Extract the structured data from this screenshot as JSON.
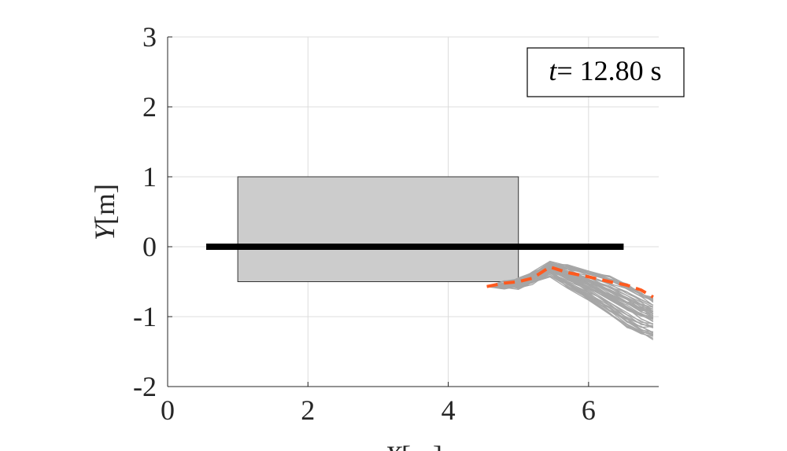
{
  "colors": {
    "grid": "#dcdcdc",
    "axis": "#262626",
    "box_fill": "#cccccc",
    "box_stroke": "#333333",
    "reference_line": "#000000",
    "samples": "#a6a6a6",
    "predicted": "#ff5a1f"
  },
  "chart_data": {
    "type": "line",
    "xlim": [
      0,
      7
    ],
    "ylim": [
      -2,
      3
    ],
    "xticks": [
      0,
      2,
      4,
      6
    ],
    "yticks": [
      -2,
      -1,
      0,
      1,
      2,
      3
    ],
    "xtick_labels": [
      "0",
      "2",
      "4",
      "6"
    ],
    "ytick_labels": [
      "-2",
      "-1",
      "0",
      "1",
      "2",
      "3"
    ],
    "grid": true,
    "xlabel": {
      "var": "X",
      "unit": "[m]"
    },
    "ylabel": {
      "var": "Y",
      "unit": "[m]"
    },
    "annotation": {
      "var": "t",
      "value": "= 12.80 s"
    },
    "obstacle": {
      "x": [
        1,
        5
      ],
      "y": [
        -0.5,
        1
      ]
    },
    "reference_path": {
      "x": [
        0.55,
        6.5
      ],
      "y": [
        0,
        0
      ]
    },
    "predicted_path": {
      "x": [
        4.55,
        4.8,
        5.0,
        5.2,
        5.45,
        5.7,
        6.0,
        6.3,
        6.55,
        6.75,
        6.92
      ],
      "y": [
        -0.57,
        -0.52,
        -0.5,
        -0.45,
        -0.29,
        -0.37,
        -0.43,
        -0.5,
        -0.55,
        -0.62,
        -0.72
      ]
    },
    "sample_trajectories": {
      "count": 60,
      "x": [
        4.55,
        4.8,
        5.0,
        5.2,
        5.45,
        5.7,
        6.0,
        6.3,
        6.55,
        6.75,
        6.92
      ],
      "y_center": [
        -0.57,
        -0.55,
        -0.52,
        -0.45,
        -0.32,
        -0.42,
        -0.55,
        -0.7,
        -0.85,
        -0.95,
        -1.02
      ],
      "y_spread": [
        0.0,
        0.03,
        0.05,
        0.07,
        0.08,
        0.14,
        0.2,
        0.26,
        0.3,
        0.3,
        0.28
      ]
    }
  }
}
